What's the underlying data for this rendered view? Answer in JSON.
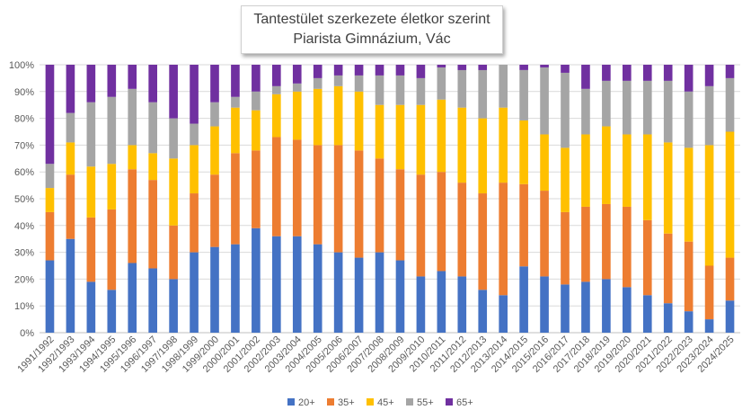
{
  "chart_data": {
    "type": "bar",
    "stacking": "percent",
    "title": "Tantestület szerkezete életkor szerint",
    "subtitle": "Piarista Gimnázium, Vác",
    "xlabel": "",
    "ylabel": "",
    "ylim": [
      0,
      100
    ],
    "y_ticks": [
      "0%",
      "10%",
      "20%",
      "30%",
      "40%",
      "50%",
      "60%",
      "70%",
      "80%",
      "90%",
      "100%"
    ],
    "grid": true,
    "legend_position": "bottom",
    "categories": [
      "1991/1992",
      "1992/1993",
      "1993/1994",
      "1994/1995",
      "1995/1996",
      "1996/1997",
      "1997/1998",
      "1998/1999",
      "1999/2000",
      "2000/2001",
      "2001/2002",
      "2002/2003",
      "2003/2004",
      "2004/2005",
      "2005/2006",
      "2006/2007",
      "2007/2008",
      "2008/2009",
      "2009/2010",
      "2010/2011",
      "2011/2012",
      "2012/2013",
      "2013/2014",
      "2014/2015",
      "2015/2016",
      "2016/2017",
      "2017/2018",
      "2018/2019",
      "2019/2020",
      "2020/2021",
      "2021/2022",
      "2022/2023",
      "2023/2024",
      "2024/2025"
    ],
    "series": [
      {
        "name": "20+",
        "color": "#4472C4",
        "values": [
          27,
          35,
          19,
          16,
          26,
          24,
          20,
          30,
          32,
          33,
          39,
          36,
          36,
          33,
          30,
          28,
          30,
          27,
          21,
          23,
          21,
          16,
          14,
          25,
          21,
          18,
          19,
          20,
          17,
          14,
          11,
          8,
          5,
          12
        ]
      },
      {
        "name": "35+",
        "color": "#ED7D31",
        "values": [
          18,
          24,
          24,
          30,
          35,
          33,
          20,
          22,
          27,
          34,
          29,
          37,
          36,
          37,
          40,
          40,
          35,
          34,
          38,
          37,
          35,
          36,
          42,
          31,
          32,
          27,
          28,
          28,
          30,
          28,
          26,
          26,
          20,
          16
        ]
      },
      {
        "name": "45+",
        "color": "#FFC000",
        "values": [
          9,
          12,
          19,
          17,
          9,
          10,
          25,
          18,
          18,
          17,
          15,
          16,
          18,
          21,
          22,
          22,
          20,
          24,
          26,
          27,
          28,
          28,
          28,
          24,
          21,
          24,
          27,
          29,
          27,
          32,
          34,
          35,
          45,
          47
        ]
      },
      {
        "name": "55+",
        "color": "#A5A5A5",
        "values": [
          9,
          11,
          24,
          25,
          21,
          19,
          15,
          8,
          9,
          4,
          7,
          3,
          3,
          4,
          4,
          6,
          11,
          11,
          10,
          12,
          14,
          18,
          16,
          19,
          25,
          28,
          17,
          17,
          20,
          20,
          23,
          21,
          22,
          20
        ]
      },
      {
        "name": "65+",
        "color": "#7030A0",
        "values": [
          37,
          18,
          14,
          12,
          9,
          14,
          20,
          22,
          14,
          12,
          10,
          8,
          7,
          5,
          4,
          4,
          4,
          4,
          5,
          1,
          2,
          2,
          0,
          2,
          1,
          3,
          9,
          6,
          6,
          6,
          6,
          10,
          8,
          5
        ]
      }
    ]
  }
}
